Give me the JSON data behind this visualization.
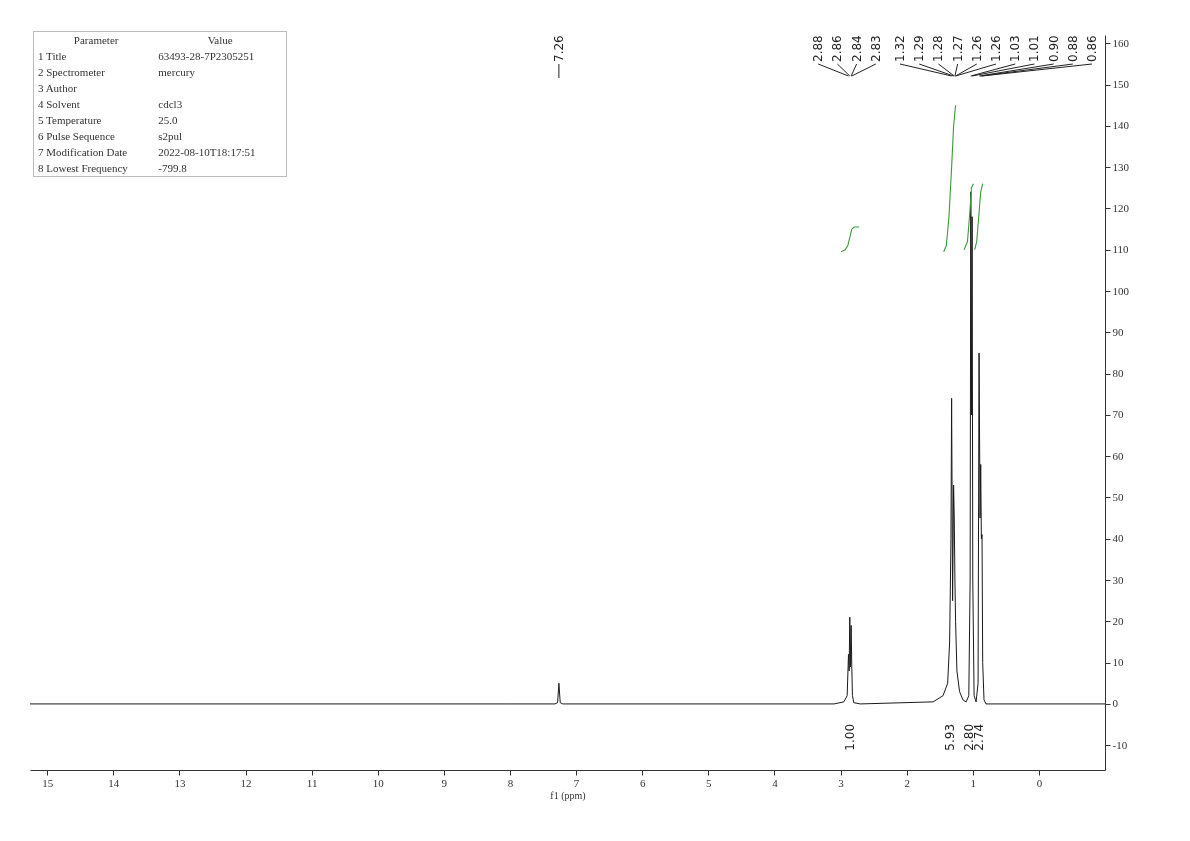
{
  "chart_data": [
    {
      "type": "other",
      "annotations": [
        "Parameter",
        "Value",
        "1 Title",
        "63493-28-7P2305251",
        "2 Spectrometer",
        "mercury",
        "3 Author",
        "4 Solvent",
        "cdcl3",
        "5 Temperature",
        "25.0",
        "6 Pulse Sequence",
        "s2pul",
        "7 Modification Date",
        "2022-08-10T18:17:51",
        "8 Lowest Frequency",
        "-799.8"
      ]
    },
    {
      "type": "line",
      "xlabel": "f1 (ppm)",
      "xlim": [
        15.26,
        -1.0
      ],
      "ylim": [
        -16,
        162
      ],
      "xticks": [
        15,
        14,
        13,
        12,
        11,
        10,
        9,
        8,
        7,
        6,
        5,
        4,
        3,
        2,
        1,
        0
      ],
      "yticks": [
        -10,
        0,
        10,
        20,
        30,
        40,
        50,
        60,
        70,
        80,
        90,
        100,
        110,
        120,
        130,
        140,
        150,
        160
      ],
      "grid": false,
      "series": [
        {
          "color": "#1a1a1a",
          "x": [
            15.26,
            8.0,
            7.32,
            7.28,
            7.26,
            7.24,
            7.2,
            3.1,
            2.95,
            2.9,
            2.88,
            2.87,
            2.86,
            2.85,
            2.84,
            2.83,
            2.82,
            2.8,
            2.7,
            1.6,
            1.45,
            1.38,
            1.35,
            1.33,
            1.32,
            1.305,
            1.29,
            1.28,
            1.27,
            1.26,
            1.24,
            1.2,
            1.15,
            1.1,
            1.06,
            1.04,
            1.03,
            1.02,
            1.01,
            1.0,
            0.98,
            0.95,
            0.92,
            0.905,
            0.89,
            0.88,
            0.87,
            0.86,
            0.85,
            0.83,
            0.8,
            -1.0
          ],
          "values": [
            0,
            0,
            0,
            0.3,
            5,
            0.3,
            0,
            0,
            0.5,
            2,
            12,
            8,
            21,
            9,
            19,
            9,
            2,
            0.3,
            0,
            0.5,
            2,
            5,
            15,
            40,
            74,
            25,
            53,
            45,
            30,
            20,
            8,
            3,
            1,
            0.5,
            2,
            30,
            124,
            70,
            118,
            30,
            2,
            0.5,
            5,
            85,
            45,
            58,
            40,
            41,
            10,
            1,
            0,
            0
          ]
        },
        {
          "color": "#3c9a3c",
          "x": [
            2.99,
            2.93,
            2.89,
            2.86,
            2.83,
            2.79,
            2.72
          ],
          "values": [
            109.5,
            110,
            111,
            113,
            115,
            115.5,
            115.5
          ]
        },
        {
          "color": "#3c9a3c",
          "x": [
            1.44,
            1.4,
            1.36,
            1.32,
            1.29,
            1.26
          ],
          "values": [
            109.5,
            111,
            118,
            130,
            140,
            145
          ]
        },
        {
          "color": "#3c9a3c",
          "x": [
            1.13,
            1.08,
            1.04,
            1.02,
            0.99
          ],
          "values": [
            110,
            112,
            120,
            125,
            126
          ]
        },
        {
          "color": "#3c9a3c",
          "x": [
            0.97,
            0.94,
            0.9,
            0.88,
            0.85
          ],
          "values": [
            110,
            112,
            120,
            124,
            126
          ]
        }
      ],
      "annotations": [
        {
          "text": "7.26",
          "x": 7.26
        },
        {
          "text": "2.88",
          "x": 2.88
        },
        {
          "text": "2.86",
          "x": 2.86
        },
        {
          "text": "2.84",
          "x": 2.84
        },
        {
          "text": "2.83",
          "x": 2.83
        },
        {
          "text": "1.32",
          "x": 1.32
        },
        {
          "text": "1.29",
          "x": 1.29
        },
        {
          "text": "1.28",
          "x": 1.28
        },
        {
          "text": "1.27",
          "x": 1.27
        },
        {
          "text": "1.26",
          "x": 1.26
        },
        {
          "text": "1.26",
          "x": 1.26
        },
        {
          "text": "1.03",
          "x": 1.03
        },
        {
          "text": "1.01",
          "x": 1.01
        },
        {
          "text": "0.90",
          "x": 0.9
        },
        {
          "text": "0.88",
          "x": 0.88
        },
        {
          "text": "0.86",
          "x": 0.86
        },
        "1.00",
        "5.93",
        "2.80",
        "2.74"
      ]
    }
  ]
}
